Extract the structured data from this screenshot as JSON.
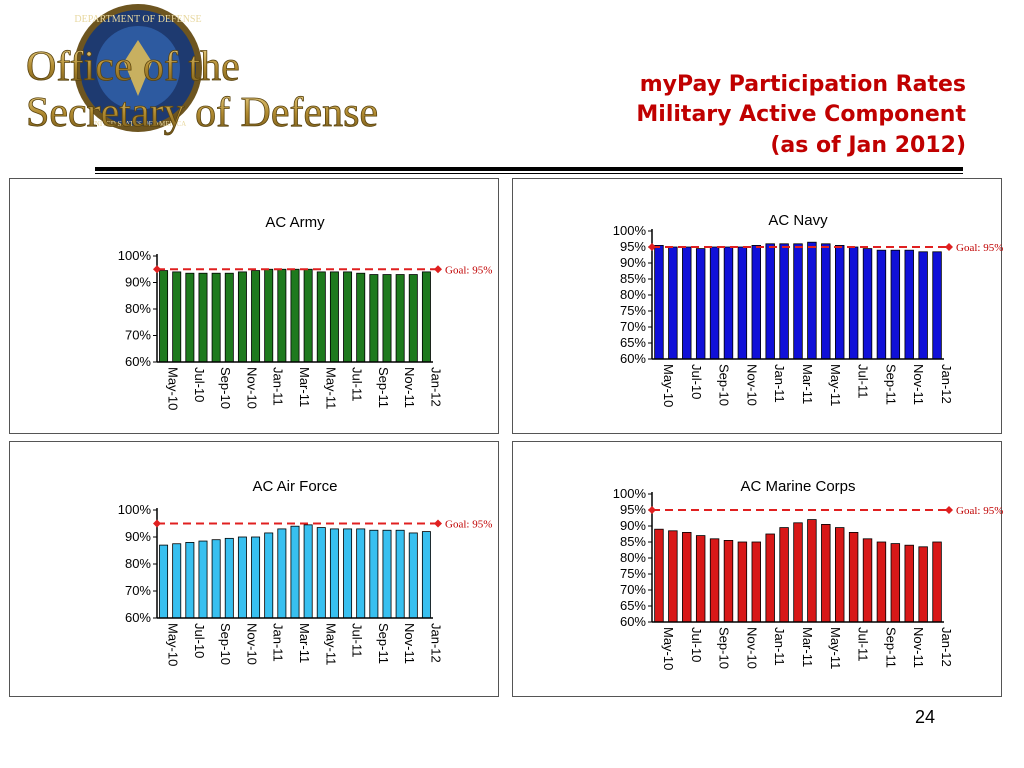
{
  "header": {
    "logo_text": [
      "Office of the",
      "Secretary of Defense"
    ],
    "seal_text": [
      "DEPARTMENT OF DEFENSE",
      "UNITED STATES OF AMERICA"
    ],
    "title_lines": [
      "myPay Participation Rates",
      "Military Active Component",
      "(as of Jan 2012)"
    ]
  },
  "colors": {
    "title": "#c00000",
    "goal_line": "#e02020",
    "army_bar": "#1e7a1e",
    "navy_bar": "#1010d8",
    "air_force_bar": "#38c0f0",
    "marine_bar": "#d81818"
  },
  "page_number": "24",
  "chart_data": [
    {
      "type": "bar",
      "title": "AC Army",
      "categories": [
        "May-10",
        "Jun-10",
        "Jul-10",
        "Aug-10",
        "Sep-10",
        "Oct-10",
        "Nov-10",
        "Dec-10",
        "Jan-11",
        "Feb-11",
        "Mar-11",
        "Apr-11",
        "May-11",
        "Jun-11",
        "Jul-11",
        "Aug-11",
        "Sep-11",
        "Oct-11",
        "Nov-11",
        "Dec-11",
        "Jan-12"
      ],
      "tick_labels": [
        "May-10",
        "Jul-10",
        "Sep-10",
        "Nov-10",
        "Jan-11",
        "Mar-11",
        "May-11",
        "Jul-11",
        "Sep-11",
        "Nov-11",
        "Jan-12"
      ],
      "values": [
        94.5,
        94,
        93.5,
        93.5,
        93.5,
        93.5,
        94,
        94.5,
        95,
        95,
        95,
        95,
        94,
        94,
        94,
        93.5,
        93,
        93,
        93,
        93,
        94
      ],
      "ylim": [
        60,
        100
      ],
      "yticks": [
        "60%",
        "70%",
        "80%",
        "90%",
        "100%"
      ],
      "goal": 95,
      "goal_label": "Goal: 95%",
      "bar_color": "#1e7a1e",
      "grid": false,
      "legend": "none"
    },
    {
      "type": "bar",
      "title": "AC Navy",
      "categories": [
        "May-10",
        "Jun-10",
        "Jul-10",
        "Aug-10",
        "Sep-10",
        "Oct-10",
        "Nov-10",
        "Dec-10",
        "Jan-11",
        "Feb-11",
        "Mar-11",
        "Apr-11",
        "May-11",
        "Jun-11",
        "Jul-11",
        "Aug-11",
        "Sep-11",
        "Oct-11",
        "Nov-11",
        "Dec-11",
        "Jan-12"
      ],
      "tick_labels": [
        "May-10",
        "Jul-10",
        "Sep-10",
        "Nov-10",
        "Jan-11",
        "Mar-11",
        "May-11",
        "Jul-11",
        "Sep-11",
        "Nov-11",
        "Jan-12"
      ],
      "values": [
        95.5,
        95,
        95,
        94.5,
        95,
        95,
        95,
        95.5,
        96,
        96,
        96,
        96.5,
        96,
        95.5,
        95,
        94.5,
        94,
        94,
        94,
        93.5,
        93.5
      ],
      "ylim": [
        60,
        100
      ],
      "yticks": [
        "60%",
        "65%",
        "70%",
        "75%",
        "80%",
        "85%",
        "90%",
        "95%",
        "100%"
      ],
      "goal": 95,
      "goal_label": "Goal: 95%",
      "bar_color": "#1010d8",
      "grid": false,
      "legend": "none"
    },
    {
      "type": "bar",
      "title": "AC Air Force",
      "categories": [
        "May-10",
        "Jun-10",
        "Jul-10",
        "Aug-10",
        "Sep-10",
        "Oct-10",
        "Nov-10",
        "Dec-10",
        "Jan-11",
        "Feb-11",
        "Mar-11",
        "Apr-11",
        "May-11",
        "Jun-11",
        "Jul-11",
        "Aug-11",
        "Sep-11",
        "Oct-11",
        "Nov-11",
        "Dec-11",
        "Jan-12"
      ],
      "tick_labels": [
        "May-10",
        "Jul-10",
        "Sep-10",
        "Nov-10",
        "Jan-11",
        "Mar-11",
        "May-11",
        "Jul-11",
        "Sep-11",
        "Nov-11",
        "Jan-12"
      ],
      "values": [
        87,
        87.5,
        88,
        88.5,
        89,
        89.5,
        90,
        90,
        91.5,
        93,
        94,
        94.5,
        93.5,
        93,
        93,
        93,
        92.5,
        92.5,
        92.5,
        91.5,
        92
      ],
      "ylim": [
        60,
        100
      ],
      "yticks": [
        "60%",
        "70%",
        "80%",
        "90%",
        "100%"
      ],
      "goal": 95,
      "goal_label": "Goal: 95%",
      "bar_color": "#38c0f0",
      "grid": false,
      "legend": "none"
    },
    {
      "type": "bar",
      "title": "AC Marine Corps",
      "categories": [
        "May-10",
        "Jun-10",
        "Jul-10",
        "Aug-10",
        "Sep-10",
        "Oct-10",
        "Nov-10",
        "Dec-10",
        "Jan-11",
        "Feb-11",
        "Mar-11",
        "Apr-11",
        "May-11",
        "Jun-11",
        "Jul-11",
        "Aug-11",
        "Sep-11",
        "Oct-11",
        "Nov-11",
        "Dec-11",
        "Jan-12"
      ],
      "tick_labels": [
        "May-10",
        "Jul-10",
        "Sep-10",
        "Nov-10",
        "Jan-11",
        "Mar-11",
        "May-11",
        "Jul-11",
        "Sep-11",
        "Nov-11",
        "Jan-12"
      ],
      "values": [
        89,
        88.5,
        88,
        87,
        86,
        85.5,
        85,
        85,
        87.5,
        89.5,
        91,
        92,
        90.5,
        89.5,
        88,
        86,
        85,
        84.5,
        84,
        83.5,
        85
      ],
      "ylim": [
        60,
        100
      ],
      "yticks": [
        "60%",
        "65%",
        "70%",
        "75%",
        "80%",
        "85%",
        "90%",
        "95%",
        "100%"
      ],
      "goal": 95,
      "goal_label": "Goal: 95%",
      "bar_color": "#d81818",
      "grid": false,
      "legend": "none"
    }
  ]
}
